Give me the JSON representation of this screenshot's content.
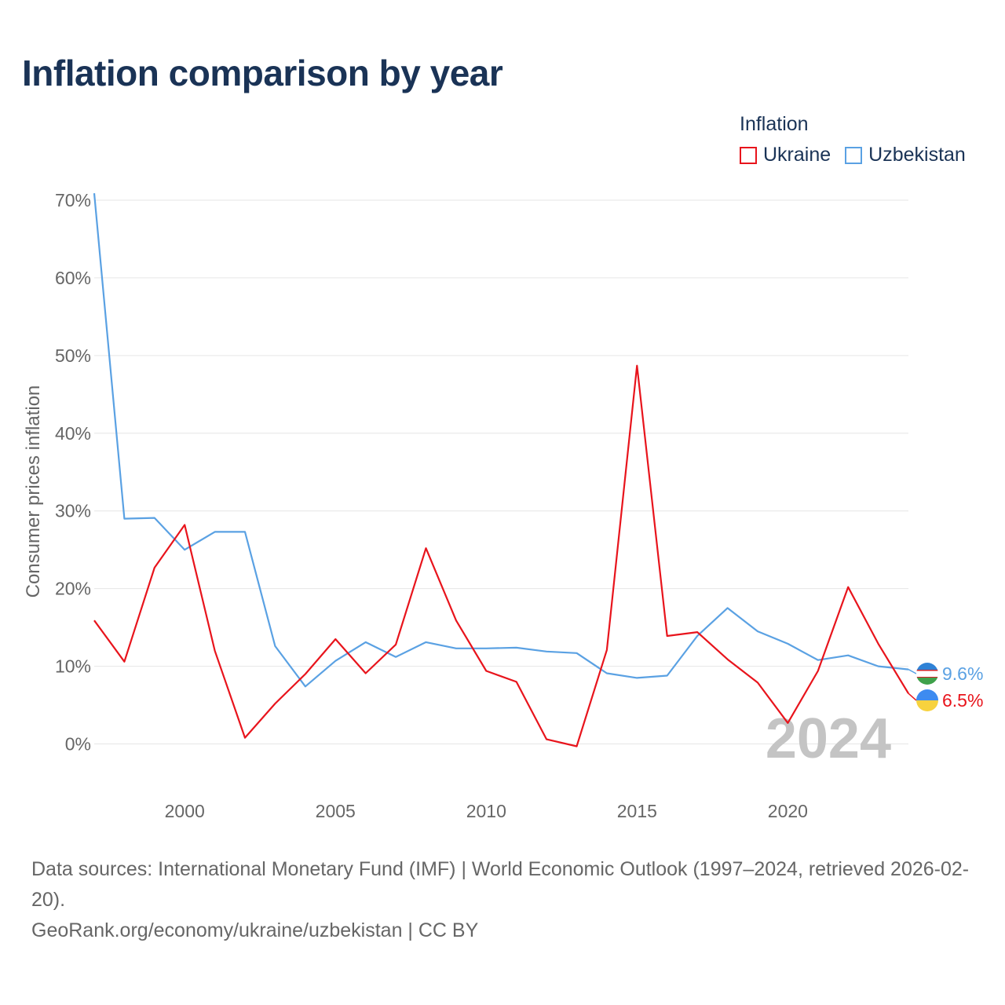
{
  "title": "Inflation comparison by year",
  "legend": {
    "title": "Inflation",
    "items": [
      {
        "label": "Ukraine",
        "color": "#e8141c"
      },
      {
        "label": "Uzbekistan",
        "color": "#5aa1e3"
      }
    ]
  },
  "chart_data": {
    "type": "line",
    "ylabel": "Consumer prices inflation",
    "xlabel": "",
    "x": [
      1997,
      1998,
      1999,
      2000,
      2001,
      2002,
      2003,
      2004,
      2005,
      2006,
      2007,
      2008,
      2009,
      2010,
      2011,
      2012,
      2013,
      2014,
      2015,
      2016,
      2017,
      2018,
      2019,
      2020,
      2021,
      2022,
      2023,
      2024
    ],
    "xlim": [
      1997,
      2024
    ],
    "ylim": [
      -5,
      70
    ],
    "xticks": [
      2000,
      2005,
      2010,
      2015,
      2020
    ],
    "yticks": [
      0,
      10,
      20,
      30,
      40,
      50,
      60,
      70
    ],
    "ytick_labels": [
      "0%",
      "10%",
      "20%",
      "30%",
      "40%",
      "50%",
      "60%",
      "70%"
    ],
    "series": [
      {
        "name": "Ukraine",
        "color": "#e8141c",
        "values": [
          15.9,
          10.6,
          22.7,
          28.2,
          12.0,
          0.8,
          5.2,
          9.0,
          13.5,
          9.1,
          12.8,
          25.2,
          15.9,
          9.4,
          8.0,
          0.6,
          -0.3,
          12.1,
          48.7,
          13.9,
          14.4,
          10.9,
          7.9,
          2.7,
          9.4,
          20.2,
          12.9,
          6.5
        ],
        "end_label": "6.5%"
      },
      {
        "name": "Uzbekistan",
        "color": "#5aa1e3",
        "values": [
          70.9,
          29.0,
          29.1,
          25.0,
          27.3,
          27.3,
          12.6,
          7.4,
          10.7,
          13.1,
          11.2,
          13.1,
          12.3,
          12.3,
          12.4,
          11.9,
          11.7,
          9.1,
          8.5,
          8.8,
          13.9,
          17.5,
          14.5,
          12.9,
          10.8,
          11.4,
          10.0,
          9.6
        ],
        "end_label": "9.6%"
      }
    ],
    "watermark": "2024",
    "grid": true
  },
  "footer": {
    "sources": "Data sources: International Monetary Fund (IMF) | World Economic Outlook (1997–2024, retrieved 2026-02-20).",
    "credit": "GeoRank.org/economy/ukraine/uzbekistan | CC BY"
  }
}
